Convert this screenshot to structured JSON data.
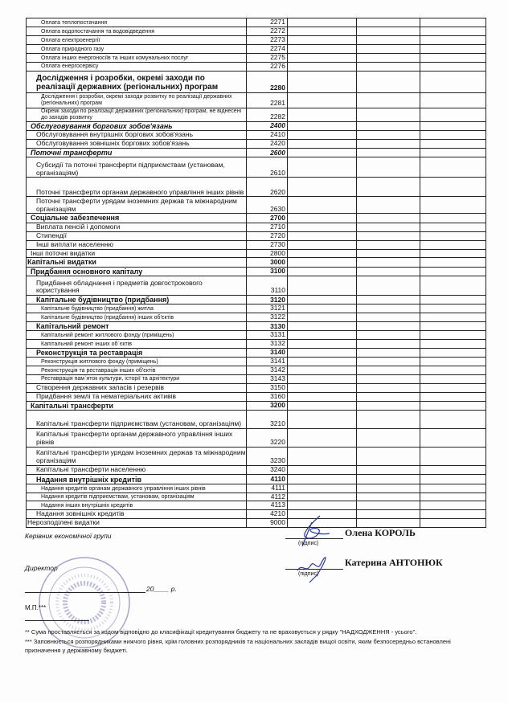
{
  "table": {
    "rows": [
      {
        "name": "Оплата теплопостачання",
        "code": "2271",
        "style": "small",
        "level": 3
      },
      {
        "name": "Оплата водопостачання та водовідведення",
        "code": "2272",
        "style": "small",
        "level": 3
      },
      {
        "name": "Оплата електроенергії",
        "code": "2273",
        "style": "small",
        "level": 3
      },
      {
        "name": "Оплата природного газу",
        "code": "2274",
        "style": "small",
        "level": 3
      },
      {
        "name": "Оплата інших енергоносіїв та інших комунальних послуг",
        "code": "2275",
        "style": "small",
        "level": 3
      },
      {
        "name": "Оплата енергосервісу",
        "code": "2276",
        "style": "small",
        "level": 3
      },
      {
        "name": "Дослідження і розробки, окремі заходи по реалізації державних (регіональних) програм",
        "code": "2280",
        "style": "big",
        "level": 1
      },
      {
        "name": "Дослідження і розробки, окремі заходи розвитку по реалізації державних (регіональних) програм",
        "code": "2281",
        "style": "small",
        "level": 2
      },
      {
        "name": "Окремі заходи по реалізації державних (регіональних) програм, не віднесені до заходів розвитку",
        "code": "2282",
        "style": "small",
        "level": 2
      },
      {
        "name": "Обслуговування боргових зобов'язань",
        "code": "2400",
        "style": "bold-italic",
        "level": 0
      },
      {
        "name": "Обслуговування внутрішніх боргових зобов'язань",
        "code": "2410",
        "style": "normal",
        "level": 1
      },
      {
        "name": "Обслуговування зовнішніх боргових зобов'язань",
        "code": "2420",
        "style": "normal",
        "level": 1
      },
      {
        "name": "Поточні трансферти",
        "code": "2600",
        "style": "bold-italic",
        "level": 0
      },
      {
        "name": "Субсидії та поточні трансферти підприємствам (установам, організаціям)",
        "code": "2610",
        "style": "normal",
        "level": 1
      },
      {
        "name": "Поточні трансферти органам державного управління інших рівнів",
        "code": "2620",
        "style": "normal",
        "level": 1
      },
      {
        "name": "Поточні трансферти урядам іноземних держав та міжнародним організаціям",
        "code": "2630",
        "style": "normal",
        "level": 1
      },
      {
        "name": "Соціальне забезпечення",
        "code": "2700",
        "style": "bold",
        "level": 0
      },
      {
        "name": "Виплата пенсій і допомоги",
        "code": "2710",
        "style": "normal",
        "level": 1
      },
      {
        "name": "Стипендії",
        "code": "2720",
        "style": "normal",
        "level": 1
      },
      {
        "name": "Інші виплати населенню",
        "code": "2730",
        "style": "normal",
        "level": 1
      },
      {
        "name": "Інші поточні видатки",
        "code": "2800",
        "style": "normal",
        "level": 0
      },
      {
        "name": "Капітальні видатки",
        "code": "3000",
        "style": "bold",
        "level": -1
      },
      {
        "name": "Придбання основного капіталу",
        "code": "3100",
        "style": "bold",
        "level": 0
      },
      {
        "name": "Придбання обладнання і предметів довгострокового користування",
        "code": "3110",
        "style": "normal",
        "level": 1
      },
      {
        "name": "Капітальне будівництво (придбання)",
        "code": "3120",
        "style": "bold",
        "level": 1
      },
      {
        "name": "Капітальне будівництво (придбання) житла",
        "code": "3121",
        "style": "small",
        "level": 2
      },
      {
        "name": "Капітальне будівництво (придбання) інших об'єктів",
        "code": "3122",
        "style": "small",
        "level": 2
      },
      {
        "name": "Капітальний ремонт",
        "code": "3130",
        "style": "bold",
        "level": 1
      },
      {
        "name": "Капітальний ремонт житлового фонду (приміщень)",
        "code": "3131",
        "style": "small",
        "level": 2
      },
      {
        "name": "Капітальний ремонт інших об`єктів",
        "code": "3132",
        "style": "small",
        "level": 2
      },
      {
        "name": "Реконструкція та реставрація",
        "code": "3140",
        "style": "bold",
        "level": 1
      },
      {
        "name": "Реконструкція житлового фонду (приміщень)",
        "code": "3141",
        "style": "small",
        "level": 2
      },
      {
        "name": "Реконструкція та реставрація інших об'єктів",
        "code": "3142",
        "style": "small",
        "level": 2
      },
      {
        "name": "Реставрація пам`яток культури, історії та архітектури",
        "code": "3143",
        "style": "small",
        "level": 2
      },
      {
        "name": "Створення державних запасів і резервів",
        "code": "3150",
        "style": "normal",
        "level": 1
      },
      {
        "name": "Придбання землі та нематеріальних активів",
        "code": "3160",
        "style": "normal",
        "level": 1
      },
      {
        "name": "Капітальні трансферти",
        "code": "3200",
        "style": "bold",
        "level": 0
      },
      {
        "name": "Капітальні трансферти підприємствам (установам, організаціям)",
        "code": "3210",
        "style": "normal",
        "level": 1
      },
      {
        "name": "Капітальні трансферти органам державного управління інших рівнів",
        "code": "3220",
        "style": "normal",
        "level": 1
      },
      {
        "name": "Капітальні трансферти урядам іноземних держав та міжнародним організаціям",
        "code": "3230",
        "style": "normal",
        "level": 1
      },
      {
        "name": "Капітальні трансферти населенню",
        "code": "3240",
        "style": "normal",
        "level": 1
      },
      {
        "name": "Надання внутрішніх кредитів",
        "code": "4110",
        "style": "bold",
        "level": 1
      },
      {
        "name": "Надання кредитів органам державного управління інших рівнів",
        "code": "4111",
        "style": "small",
        "level": 2
      },
      {
        "name": "Надання кредитів підприємствам, установам, організаціям",
        "code": "4112",
        "style": "small",
        "level": 2
      },
      {
        "name": "Надання інших внутрішніх кредитів",
        "code": "4113",
        "style": "small",
        "level": 2
      },
      {
        "name": "Надання зовнішніх кредитів",
        "code": "4210",
        "style": "normal",
        "level": 1
      },
      {
        "name": "Нерозподілені видатки",
        "code": "9000",
        "style": "normal",
        "level": -1
      }
    ]
  },
  "signatures": {
    "head_title": "Керівник економічної групи",
    "head_name": "Олена КОРОЛЬ",
    "director_title": "Директор",
    "director_name": "Катерина АНТОНЮК",
    "signature_caption": "(підпис)",
    "date_year": "20",
    "date_suffix": "р.",
    "stamp_label": "М.П.***",
    "stamp_text": "ШКОЛА № 5 ІМ. Я.П. БАТЮКА М."
  },
  "footnotes": [
    "** Сума проставляється за кодом відповідно до класифікації кредитування бюджету та не враховується у рядку \"НАДХОДЖЕННЯ - усього\".",
    "*** Заповнюється розпорядниками нижчого рівня, крім головних розпорядників та національних закладів вищої освіти, яким безпосередньо встановлені призначення у державному бюджеті."
  ]
}
